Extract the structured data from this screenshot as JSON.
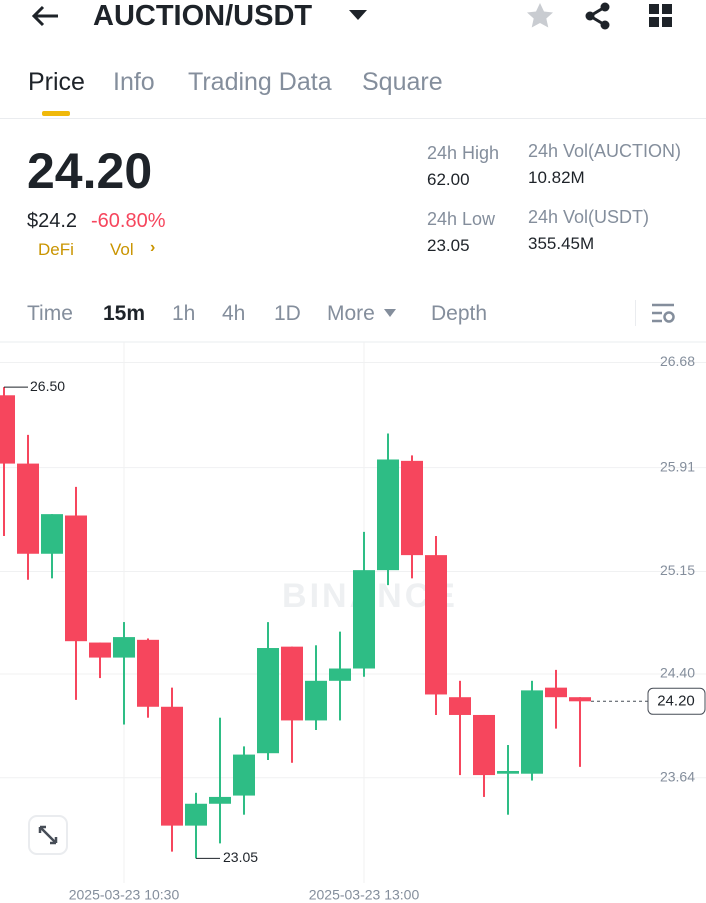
{
  "header": {
    "title": "AUCTION/USDT"
  },
  "tabs": [
    "Price",
    "Info",
    "Trading Data",
    "Square"
  ],
  "price": {
    "last": "24.20",
    "usd": "$24.2",
    "change": "-60.80%",
    "tags": [
      "DeFi",
      "Vol"
    ]
  },
  "stats": [
    {
      "label": "24h High",
      "value": "62.00"
    },
    {
      "label": "24h Vol(AUCTION)",
      "value": "10.82M"
    },
    {
      "label": "24h Low",
      "value": "23.05"
    },
    {
      "label": "24h Vol(USDT)",
      "value": "355.45M"
    }
  ],
  "intervals": [
    "Time",
    "15m",
    "1h",
    "4h",
    "1D",
    "More",
    "Depth"
  ],
  "chart_data": {
    "type": "candlestick",
    "watermark": "BINANCE",
    "categories": [
      null,
      null,
      null,
      null,
      null,
      "2025-03-23 10:30",
      null,
      null,
      null,
      null,
      null,
      null,
      null,
      null,
      null,
      "2025-03-23 13:00",
      null,
      null,
      null,
      null,
      null,
      null,
      null,
      null,
      null
    ],
    "open": [
      26.44,
      25.94,
      25.28,
      25.56,
      24.63,
      24.52,
      24.65,
      24.16,
      23.29,
      23.45,
      23.51,
      23.82,
      24.6,
      24.06,
      24.35,
      24.44,
      25.16,
      25.96,
      25.27,
      24.23,
      24.1,
      23.67,
      23.67,
      24.3,
      24.23
    ],
    "high": [
      26.5,
      26.15,
      25.57,
      25.77,
      24.63,
      24.78,
      24.66,
      24.3,
      23.53,
      24.08,
      23.87,
      24.78,
      24.6,
      24.61,
      24.71,
      25.44,
      26.16,
      26.0,
      25.41,
      24.35,
      24.1,
      23.88,
      24.35,
      24.43,
      24.23
    ],
    "low": [
      25.41,
      25.09,
      25.1,
      24.21,
      24.37,
      24.03,
      24.08,
      23.1,
      23.05,
      23.16,
      23.37,
      23.77,
      23.75,
      23.99,
      24.06,
      24.38,
      25.05,
      25.1,
      24.1,
      23.66,
      23.5,
      23.37,
      23.62,
      24.0,
      23.72
    ],
    "close": [
      25.94,
      25.28,
      25.57,
      24.64,
      24.52,
      24.67,
      24.16,
      23.29,
      23.45,
      23.5,
      23.81,
      24.59,
      24.06,
      24.35,
      24.44,
      25.16,
      25.97,
      25.27,
      24.25,
      24.1,
      23.66,
      23.69,
      24.28,
      24.23,
      24.2
    ],
    "up_color": "#2ebd85",
    "down_color": "#f6465d",
    "ylim": [
      22.87,
      26.83
    ],
    "yticks": [
      26.68,
      25.91,
      25.15,
      {
        "value": 24.4,
        "label": "24.40"
      },
      23.64
    ],
    "grid": true,
    "markers": {
      "high": {
        "value": 26.5,
        "label": "26.50"
      },
      "low": {
        "value": 23.05,
        "label": "23.05"
      },
      "last": {
        "value": 24.2,
        "label": "24.20"
      }
    }
  }
}
